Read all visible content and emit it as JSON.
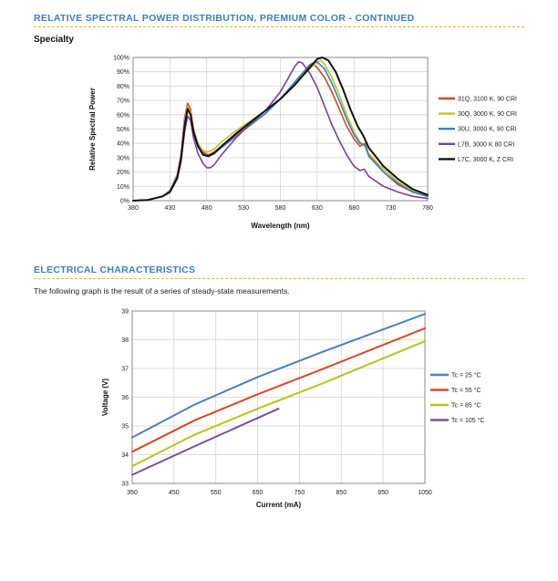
{
  "sections": {
    "spectral_title": "RELATIVE SPECTRAL POWER DISTRIBUTION, PREMIUM COLOR - CONTINUED",
    "specialty_label": "Specialty",
    "electrical_title": "ELECTRICAL CHARACTERISTICS",
    "electrical_desc": "The following graph is the result of a series of steady-state measurements."
  },
  "chart_data": [
    {
      "type": "line",
      "xlabel": "Wavelength (nm)",
      "ylabel": "Relative Spectral Power",
      "xlim": [
        380,
        780
      ],
      "ylim": [
        0,
        100
      ],
      "xticks": [
        380,
        430,
        480,
        530,
        580,
        630,
        680,
        730,
        780
      ],
      "yticks": [
        "0%",
        "10%",
        "20%",
        "30%",
        "40%",
        "50%",
        "60%",
        "70%",
        "80%",
        "90%",
        "100%"
      ],
      "grid": true,
      "legend_position": "right",
      "series": [
        {
          "name": "31Q, 3100 K, 90 CRI",
          "color": "#d9481f",
          "width": 1.6,
          "points": [
            [
              380,
              0
            ],
            [
              400,
              0.5
            ],
            [
              420,
              3
            ],
            [
              430,
              7
            ],
            [
              440,
              18
            ],
            [
              445,
              32
            ],
            [
              450,
              58
            ],
            [
              454,
              68
            ],
            [
              458,
              64
            ],
            [
              462,
              50
            ],
            [
              468,
              40
            ],
            [
              475,
              34
            ],
            [
              482,
              32
            ],
            [
              490,
              34
            ],
            [
              500,
              38
            ],
            [
              520,
              46
            ],
            [
              540,
              53
            ],
            [
              560,
              61
            ],
            [
              580,
              71
            ],
            [
              590,
              77
            ],
            [
              600,
              83
            ],
            [
              610,
              89
            ],
            [
              620,
              94
            ],
            [
              625,
              95
            ],
            [
              630,
              93
            ],
            [
              640,
              86
            ],
            [
              650,
              76
            ],
            [
              660,
              64
            ],
            [
              670,
              52
            ],
            [
              680,
              43
            ],
            [
              688,
              38
            ],
            [
              695,
              40
            ],
            [
              700,
              32
            ],
            [
              720,
              20
            ],
            [
              740,
              11
            ],
            [
              760,
              6
            ],
            [
              780,
              3
            ]
          ]
        },
        {
          "name": "30Q, 3000 K, 90 CRI",
          "color": "#c0c41a",
          "width": 1.6,
          "points": [
            [
              380,
              0
            ],
            [
              400,
              0.5
            ],
            [
              420,
              3
            ],
            [
              430,
              7
            ],
            [
              440,
              17
            ],
            [
              445,
              30
            ],
            [
              450,
              55
            ],
            [
              454,
              66
            ],
            [
              458,
              62
            ],
            [
              462,
              49
            ],
            [
              468,
              40
            ],
            [
              475,
              35
            ],
            [
              482,
              34
            ],
            [
              490,
              36
            ],
            [
              500,
              41
            ],
            [
              520,
              49
            ],
            [
              540,
              56
            ],
            [
              560,
              63
            ],
            [
              580,
              71
            ],
            [
              590,
              76
            ],
            [
              600,
              81
            ],
            [
              610,
              87
            ],
            [
              620,
              92
            ],
            [
              630,
              97
            ],
            [
              635,
              98
            ],
            [
              640,
              95
            ],
            [
              650,
              86
            ],
            [
              660,
              74
            ],
            [
              670,
              60
            ],
            [
              680,
              48
            ],
            [
              688,
              41
            ],
            [
              693,
              39
            ],
            [
              700,
              33
            ],
            [
              720,
              22
            ],
            [
              740,
              13
            ],
            [
              760,
              7
            ],
            [
              780,
              3
            ]
          ]
        },
        {
          "name": "30U, 3000 K, 90 CRI",
          "color": "#3a7fc1",
          "width": 1.6,
          "points": [
            [
              380,
              0
            ],
            [
              400,
              0.5
            ],
            [
              420,
              3
            ],
            [
              430,
              7
            ],
            [
              440,
              17
            ],
            [
              445,
              30
            ],
            [
              450,
              54
            ],
            [
              454,
              64
            ],
            [
              458,
              60
            ],
            [
              462,
              48
            ],
            [
              468,
              39
            ],
            [
              475,
              33
            ],
            [
              482,
              31
            ],
            [
              490,
              33
            ],
            [
              500,
              37
            ],
            [
              520,
              45
            ],
            [
              540,
              53
            ],
            [
              560,
              61
            ],
            [
              580,
              71
            ],
            [
              590,
              77
            ],
            [
              600,
              83
            ],
            [
              610,
              89
            ],
            [
              620,
              95
            ],
            [
              628,
              97
            ],
            [
              632,
              96
            ],
            [
              640,
              92
            ],
            [
              650,
              82
            ],
            [
              660,
              70
            ],
            [
              670,
              57
            ],
            [
              680,
              46
            ],
            [
              688,
              40
            ],
            [
              695,
              39
            ],
            [
              700,
              31
            ],
            [
              720,
              20
            ],
            [
              740,
              12
            ],
            [
              760,
              6
            ],
            [
              780,
              3
            ]
          ]
        },
        {
          "name": "L7B, 3000 K 80 CRI",
          "color": "#7a3fa0",
          "width": 1.6,
          "points": [
            [
              380,
              0
            ],
            [
              400,
              0.5
            ],
            [
              420,
              3
            ],
            [
              430,
              6
            ],
            [
              440,
              15
            ],
            [
              445,
              27
            ],
            [
              450,
              48
            ],
            [
              454,
              59
            ],
            [
              458,
              56
            ],
            [
              462,
              44
            ],
            [
              468,
              33
            ],
            [
              475,
              26
            ],
            [
              480,
              23
            ],
            [
              485,
              23
            ],
            [
              490,
              25
            ],
            [
              500,
              32
            ],
            [
              520,
              44
            ],
            [
              540,
              54
            ],
            [
              560,
              63
            ],
            [
              580,
              76
            ],
            [
              590,
              85
            ],
            [
              600,
              94
            ],
            [
              605,
              97
            ],
            [
              610,
              96
            ],
            [
              620,
              89
            ],
            [
              630,
              79
            ],
            [
              640,
              66
            ],
            [
              650,
              53
            ],
            [
              660,
              42
            ],
            [
              670,
              32
            ],
            [
              680,
              24
            ],
            [
              688,
              21
            ],
            [
              694,
              22
            ],
            [
              700,
              17
            ],
            [
              720,
              10
            ],
            [
              740,
              6
            ],
            [
              760,
              3
            ],
            [
              780,
              1.5
            ]
          ]
        },
        {
          "name": "L7C, 3000 K, Z CRI",
          "color": "#111111",
          "width": 2.0,
          "points": [
            [
              380,
              0
            ],
            [
              400,
              0.5
            ],
            [
              420,
              3
            ],
            [
              430,
              6
            ],
            [
              440,
              16
            ],
            [
              445,
              29
            ],
            [
              450,
              52
            ],
            [
              454,
              64
            ],
            [
              458,
              60
            ],
            [
              462,
              48
            ],
            [
              468,
              38
            ],
            [
              475,
              32
            ],
            [
              482,
              31
            ],
            [
              490,
              33
            ],
            [
              500,
              38
            ],
            [
              520,
              47
            ],
            [
              540,
              55
            ],
            [
              560,
              63
            ],
            [
              580,
              71
            ],
            [
              590,
              76
            ],
            [
              600,
              81
            ],
            [
              610,
              87
            ],
            [
              620,
              93
            ],
            [
              630,
              99
            ],
            [
              637,
              100
            ],
            [
              645,
              98
            ],
            [
              655,
              90
            ],
            [
              665,
              78
            ],
            [
              675,
              64
            ],
            [
              685,
              52
            ],
            [
              693,
              45
            ],
            [
              700,
              37
            ],
            [
              720,
              24
            ],
            [
              740,
              15
            ],
            [
              760,
              8
            ],
            [
              780,
              4
            ]
          ]
        }
      ]
    },
    {
      "type": "line",
      "xlabel": "Current (mA)",
      "ylabel": "Voltage (V)",
      "xlim": [
        350,
        1050
      ],
      "ylim": [
        33,
        39
      ],
      "xticks": [
        350,
        450,
        550,
        650,
        750,
        850,
        950,
        1050
      ],
      "yticks": [
        33,
        34,
        35,
        36,
        37,
        38,
        39
      ],
      "grid": true,
      "legend_position": "right",
      "series": [
        {
          "name": "Tc = 25 °C",
          "color": "#4a7fc4",
          "width": 2,
          "points": [
            [
              350,
              34.6
            ],
            [
              500,
              35.75
            ],
            [
              650,
              36.7
            ],
            [
              800,
              37.55
            ],
            [
              1050,
              38.9
            ]
          ]
        },
        {
          "name": "Tc = 55 °C",
          "color": "#d9481f",
          "width": 2,
          "points": [
            [
              350,
              34.1
            ],
            [
              500,
              35.2
            ],
            [
              650,
              36.1
            ],
            [
              800,
              36.95
            ],
            [
              1050,
              38.4
            ]
          ]
        },
        {
          "name": "Tc = 85 °C",
          "color": "#b8c41a",
          "width": 2,
          "points": [
            [
              350,
              33.6
            ],
            [
              500,
              34.7
            ],
            [
              650,
              35.6
            ],
            [
              800,
              36.45
            ],
            [
              1050,
              37.95
            ]
          ]
        },
        {
          "name": "Tc = 105 °C",
          "color": "#7a4fa0",
          "width": 2,
          "points": [
            [
              350,
              33.3
            ],
            [
              500,
              34.3
            ],
            [
              600,
              34.95
            ],
            [
              700,
              35.6
            ]
          ]
        }
      ]
    }
  ]
}
